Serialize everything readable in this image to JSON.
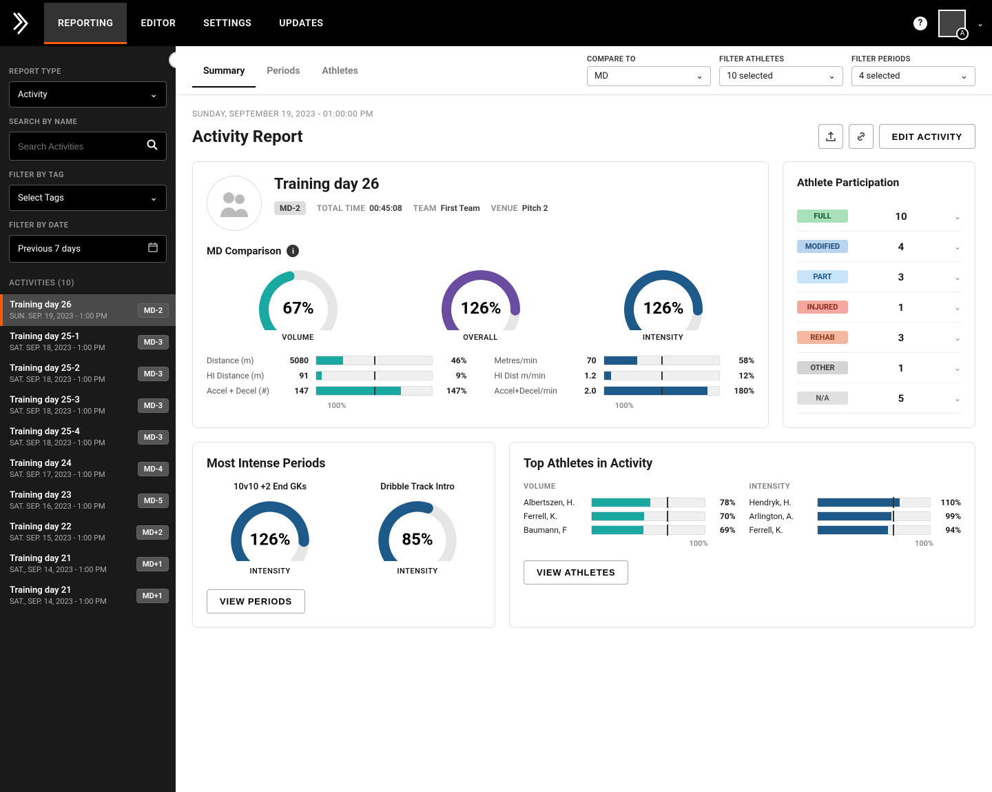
{
  "colors": {
    "accent": "#ff5a00",
    "teal": "#1aa9a0",
    "purple": "#6a4ca0",
    "navy": "#1d5a8a",
    "gaugetrack": "#e6e6e6"
  },
  "nav": {
    "tabs": [
      "REPORTING",
      "EDITOR",
      "SETTINGS",
      "UPDATES"
    ],
    "active": 0,
    "avatar_badge": "A"
  },
  "sidebar": {
    "report_type_label": "REPORT TYPE",
    "report_type_value": "Activity",
    "search_label": "SEARCH BY NAME",
    "search_placeholder": "Search Activities",
    "tag_label": "FILTER BY TAG",
    "tag_value": "Select Tags",
    "date_label": "FILTER BY DATE",
    "date_value": "Previous 7 days",
    "activities_header": "ACTIVITIES (10)",
    "activities": [
      {
        "title": "Training day 26",
        "date": "SUN. SEP. 19, 2023 - 1:00 PM",
        "md": "MD-2",
        "selected": true
      },
      {
        "title": "Training day 25-1",
        "date": "SAT. SEP. 18, 2023 - 1:00 PM",
        "md": "MD-3"
      },
      {
        "title": "Training day 25-2",
        "date": "SAT. SEP. 18, 2023 - 1:00 PM",
        "md": "MD-3"
      },
      {
        "title": "Training day 25-3",
        "date": "SAT. SEP. 18, 2023 - 1:00 PM",
        "md": "MD-3"
      },
      {
        "title": "Training day 25-4",
        "date": "SAT. SEP. 18, 2023 - 1:00 PM",
        "md": "MD-3"
      },
      {
        "title": "Training day 24",
        "date": "SAT. SEP. 17, 2023 - 1:00 PM",
        "md": "MD-4"
      },
      {
        "title": "Training day 23",
        "date": "SAT. SEP. 16, 2023 - 1:00 PM",
        "md": "MD-5"
      },
      {
        "title": "Training day 22",
        "date": "SAT. SEP. 15, 2023 - 1:00 PM",
        "md": "MD+2"
      },
      {
        "title": "Training day 21",
        "date": "SAT., SEP. 14, 2023 - 1:00 PM",
        "md": "MD+1"
      },
      {
        "title": "Training day 21",
        "date": "SAT., SEP. 14, 2023 - 1:00 PM",
        "md": "MD+1"
      }
    ]
  },
  "header": {
    "subtabs": [
      "Summary",
      "Periods",
      "Athletes"
    ],
    "subtab_active": 0,
    "compare_label": "COMPARE TO",
    "compare_value": "MD",
    "filter_athletes_label": "FILTER ATHLETES",
    "filter_athletes_value": "10 selected",
    "filter_periods_label": "FILTER PERIODS",
    "filter_periods_value": "4 selected"
  },
  "report": {
    "timestamp": "SUNDAY, SEPTEMBER 19, 2023 - 01:00:00 PM",
    "title": "Activity Report",
    "edit_btn": "EDIT ACTIVITY",
    "activity_name": "Training day 26",
    "md_badge": "MD-2",
    "total_time_label": "TOTAL TIME",
    "total_time_value": "00:45:08",
    "team_label": "TEAM",
    "team_value": "First Team",
    "venue_label": "VENUE",
    "venue_value": "Pitch 2",
    "comparison_title": "MD Comparison",
    "hundred_label": "100%",
    "gauges": [
      {
        "label": "VOLUME",
        "value": "67%",
        "pct": 67,
        "color": "#1aa9a0"
      },
      {
        "label": "OVERALL",
        "value": "126%",
        "pct": 126,
        "color": "#6a4ca0"
      },
      {
        "label": "INTENSITY",
        "value": "126%",
        "pct": 126,
        "color": "#1d5a8a"
      }
    ],
    "metrics_left": [
      {
        "label": "Distance (m)",
        "value": "5080",
        "pct": 46,
        "color": "#1aa9a0"
      },
      {
        "label": "HI Distance (m)",
        "value": "91",
        "pct": 9,
        "color": "#1aa9a0"
      },
      {
        "label": "Accel + Decel (#)",
        "value": "147",
        "pct": 147,
        "color": "#1aa9a0"
      }
    ],
    "metrics_right": [
      {
        "label": "Metres/min",
        "value": "70",
        "pct": 58,
        "color": "#1d5a8a"
      },
      {
        "label": "HI Dist m/min",
        "value": "1.2",
        "pct": 12,
        "color": "#1d5a8a"
      },
      {
        "label": "Accel+Decel/min",
        "value": "2.0",
        "pct": 180,
        "color": "#1d5a8a"
      }
    ]
  },
  "participation": {
    "title": "Athlete Participation",
    "rows": [
      {
        "label": "FULL",
        "count": "10",
        "bg": "#a8e0b8",
        "fg": "#0a5a2a"
      },
      {
        "label": "MODIFIED",
        "count": "4",
        "bg": "#b8d4ee",
        "fg": "#1a4a7a"
      },
      {
        "label": "PART",
        "count": "3",
        "bg": "#c8e4f8",
        "fg": "#1a5a8a"
      },
      {
        "label": "INJURED",
        "count": "1",
        "bg": "#f4a8a0",
        "fg": "#8a2a1a"
      },
      {
        "label": "REHAB",
        "count": "3",
        "bg": "#f4b8a0",
        "fg": "#8a3a1a"
      },
      {
        "label": "OTHER",
        "count": "1",
        "bg": "#d4d4d4",
        "fg": "#3a3a3a"
      },
      {
        "label": "N/A",
        "count": "5",
        "bg": "#e0e0e0",
        "fg": "#555555"
      }
    ]
  },
  "periods": {
    "title": "Most Intense Periods",
    "btn": "VIEW PERIODS",
    "items": [
      {
        "name": "10v10 +2 End GKs",
        "value": "126%",
        "pct": 126,
        "label": "INTENSITY",
        "color": "#1d5a8a"
      },
      {
        "name": "Dribble Track Intro",
        "value": "85%",
        "pct": 85,
        "label": "INTENSITY",
        "color": "#1d5a8a"
      }
    ]
  },
  "top_athletes": {
    "title": "Top Athletes in Activity",
    "btn": "VIEW ATHLETES",
    "hundred": "100%",
    "volume_label": "VOLUME",
    "intensity_label": "INTENSITY",
    "volume": [
      {
        "name": "Albertszen, H.",
        "pct": 78,
        "color": "#1aa9a0"
      },
      {
        "name": "Ferrell, K.",
        "pct": 70,
        "color": "#1aa9a0"
      },
      {
        "name": "Baumann, F",
        "pct": 69,
        "color": "#1aa9a0"
      }
    ],
    "intensity": [
      {
        "name": "Hendryk, H.",
        "pct": 110,
        "color": "#1d5a8a"
      },
      {
        "name": "Arlington, A.",
        "pct": 99,
        "color": "#1d5a8a"
      },
      {
        "name": "Ferrell, K.",
        "pct": 94,
        "color": "#1d5a8a"
      }
    ]
  }
}
